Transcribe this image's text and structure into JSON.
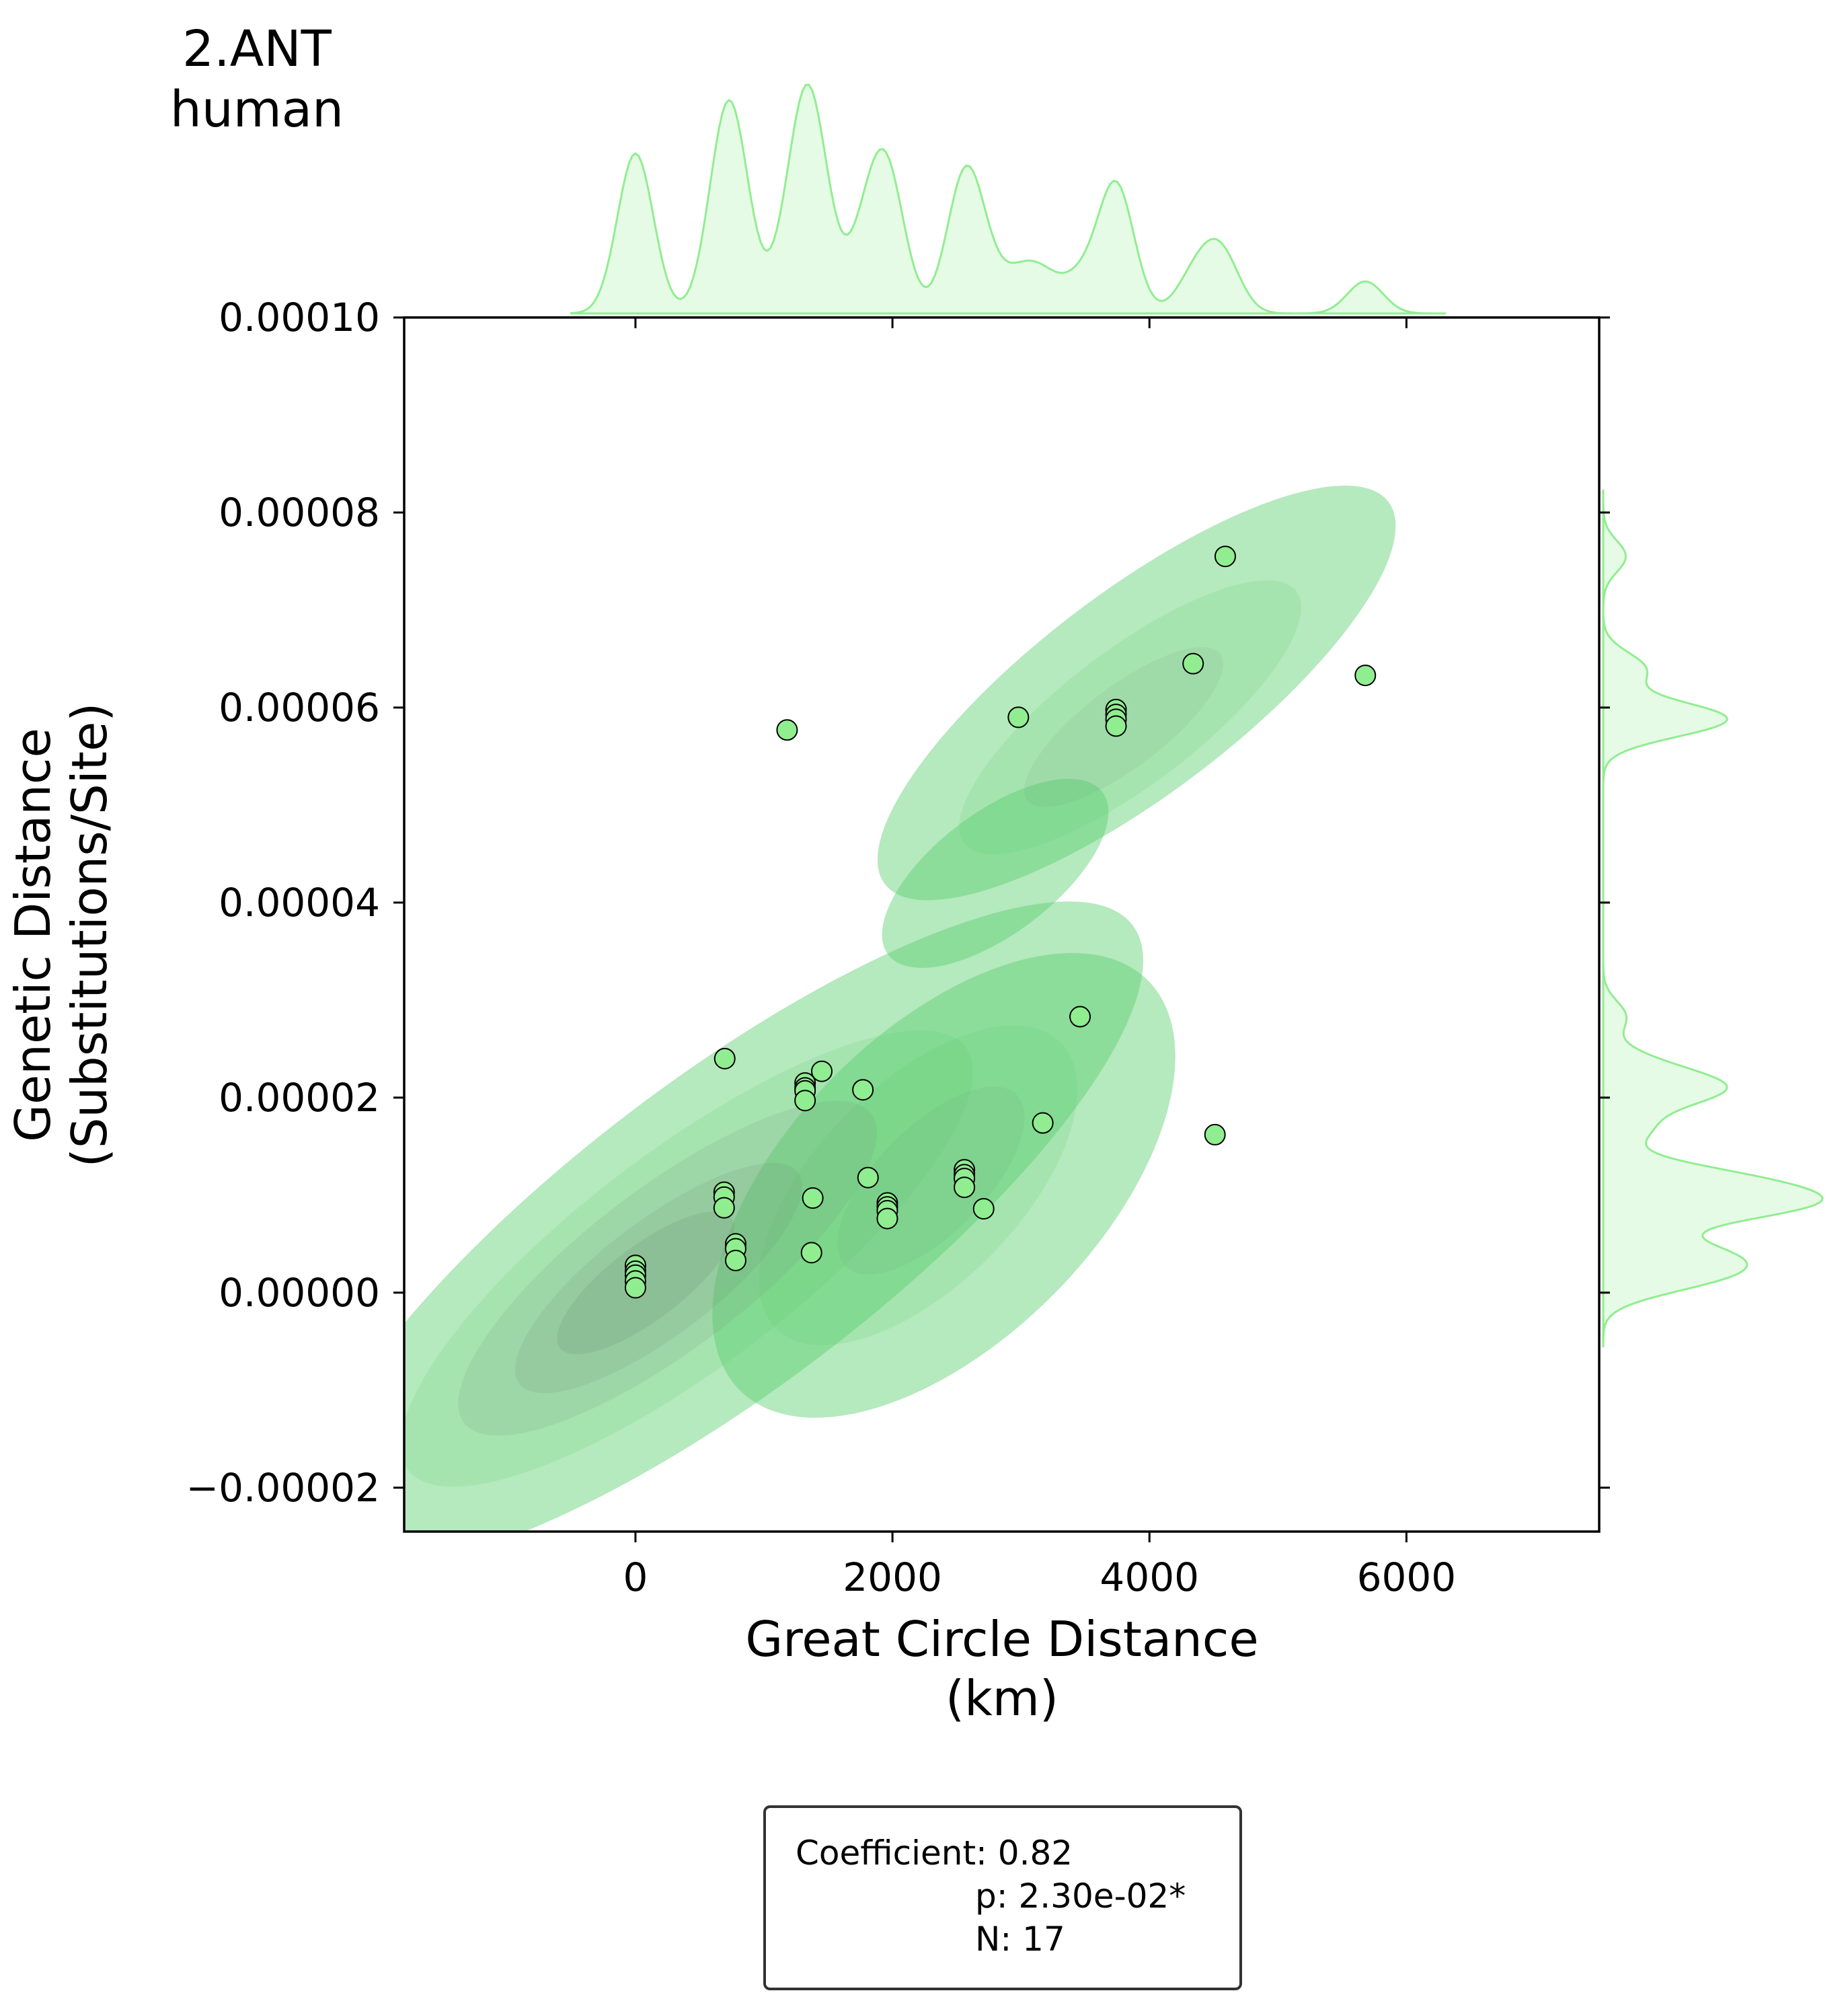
{
  "title": {
    "line1": "2.ANT",
    "line2": "human"
  },
  "colors": {
    "marker_fill": "#90EE90",
    "marker_edge": "#000000",
    "kde_fill": "#5ccf6e",
    "kde_dark": "#6f8f76",
    "marginal_line": "#90EE90",
    "marginal_fill": "#e6fbe6"
  },
  "chart_data": {
    "type": "scatter",
    "xlabel": [
      "Great Circle Distance",
      "(km)"
    ],
    "ylabel": [
      "Genetic Distance",
      "(Substitutions/Site)"
    ],
    "xlim": [
      -1800,
      7500
    ],
    "ylim": [
      -2.45e-05,
      0.0001
    ],
    "xticks": [
      0,
      2000,
      4000,
      6000
    ],
    "xtick_labels": [
      "0",
      "2000",
      "4000",
      "6000"
    ],
    "yticks": [
      -2e-05,
      0,
      2e-05,
      4e-05,
      6e-05,
      8e-05,
      0.0001
    ],
    "ytick_labels": [
      "−0.00002",
      "0.00000",
      "0.00002",
      "0.00004",
      "0.00006",
      "0.00008",
      "0.00010"
    ],
    "grid": false,
    "points": [
      [
        0,
        2.8e-06
      ],
      [
        0,
        2.2e-06
      ],
      [
        0,
        1.8e-06
      ],
      [
        0,
        1.2e-06
      ],
      [
        0,
        5e-07
      ],
      [
        690,
        1.03e-05
      ],
      [
        690,
        9.8e-06
      ],
      [
        690,
        8.7e-06
      ],
      [
        695,
        2.4e-05
      ],
      [
        780,
        5e-06
      ],
      [
        780,
        4.5e-06
      ],
      [
        780,
        3.3e-06
      ],
      [
        1180,
        5.77e-05
      ],
      [
        1320,
        2.15e-05
      ],
      [
        1320,
        2.1e-05
      ],
      [
        1320,
        2.07e-05
      ],
      [
        1320,
        1.97e-05
      ],
      [
        1370,
        4.1e-06
      ],
      [
        1380,
        9.7e-06
      ],
      [
        1450,
        2.27e-05
      ],
      [
        1770,
        2.08e-05
      ],
      [
        1810,
        1.18e-05
      ],
      [
        1960,
        9.2e-06
      ],
      [
        1960,
        8.8e-06
      ],
      [
        1960,
        8.4e-06
      ],
      [
        1960,
        7.6e-06
      ],
      [
        2560,
        1.26e-05
      ],
      [
        2560,
        1.21e-05
      ],
      [
        2560,
        1.17e-05
      ],
      [
        2560,
        1.08e-05
      ],
      [
        2710,
        8.6e-06
      ],
      [
        2980,
        5.9e-05
      ],
      [
        3170,
        1.74e-05
      ],
      [
        3460,
        2.83e-05
      ],
      [
        3740,
        5.98e-05
      ],
      [
        3740,
        5.93e-05
      ],
      [
        3740,
        5.88e-05
      ],
      [
        3740,
        5.81e-05
      ],
      [
        4340,
        6.45e-05
      ],
      [
        4510,
        1.62e-05
      ],
      [
        4590,
        7.55e-05
      ],
      [
        5680,
        6.33e-05
      ]
    ]
  },
  "stats": {
    "coefficient": "Coefficient: 0.82",
    "p": "p: 2.30e-02*",
    "n": "N: 17"
  }
}
